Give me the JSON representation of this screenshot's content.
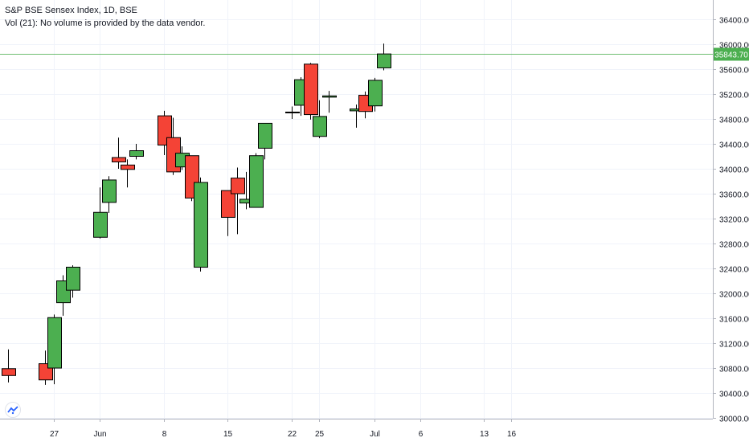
{
  "chart_data": {
    "type": "candlestick",
    "title": "S&P BSE Sensex Index, 1D, BSE",
    "subtitle": "Vol (21): No volume is provided by the data vendor.",
    "ylim": [
      30000,
      36600
    ],
    "y_ticks": [
      "30000.00",
      "30400.00",
      "30800.00",
      "31200.00",
      "31600.00",
      "32000.00",
      "32400.00",
      "32800.00",
      "33200.00",
      "33600.00",
      "34000.00",
      "34400.00",
      "34800.00",
      "35200.00",
      "35600.00",
      "36000.00",
      "36400.00"
    ],
    "x_ticks": [
      {
        "label": "27",
        "date": "2020-05-27"
      },
      {
        "label": "Jun",
        "date": "2020-06-01"
      },
      {
        "label": "8",
        "date": "2020-06-08"
      },
      {
        "label": "15",
        "date": "2020-06-15"
      },
      {
        "label": "22",
        "date": "2020-06-22"
      },
      {
        "label": "25",
        "date": "2020-06-25"
      },
      {
        "label": "Jul",
        "date": "2020-07-01"
      },
      {
        "label": "6",
        "date": "2020-07-06"
      },
      {
        "label": "13",
        "date": "2020-07-13"
      },
      {
        "label": "16",
        "date": "2020-07-16"
      }
    ],
    "last_price": "35843.70",
    "colors": {
      "up": "#4caf50",
      "down": "#f44336",
      "price_line": "#4caf50",
      "grid": "#f0f3fa",
      "text": "#131722"
    },
    "candles": [
      {
        "date": "2020-05-22",
        "open": 30790,
        "high": 31100,
        "low": 30570,
        "close": 30680
      },
      {
        "date": "2020-05-26",
        "open": 30870,
        "high": 31080,
        "low": 30530,
        "close": 30610
      },
      {
        "date": "2020-05-27",
        "open": 30800,
        "high": 31660,
        "low": 30540,
        "close": 31610
      },
      {
        "date": "2020-05-28",
        "open": 31850,
        "high": 32290,
        "low": 31640,
        "close": 32200
      },
      {
        "date": "2020-05-29",
        "open": 32050,
        "high": 32450,
        "low": 31930,
        "close": 32420
      },
      {
        "date": "2020-06-01",
        "open": 32900,
        "high": 33700,
        "low": 32880,
        "close": 33300
      },
      {
        "date": "2020-06-02",
        "open": 33460,
        "high": 33880,
        "low": 33290,
        "close": 33820
      },
      {
        "date": "2020-06-03",
        "open": 34180,
        "high": 34500,
        "low": 34000,
        "close": 34110
      },
      {
        "date": "2020-06-04",
        "open": 34060,
        "high": 34150,
        "low": 33700,
        "close": 33990
      },
      {
        "date": "2020-06-05",
        "open": 34200,
        "high": 34400,
        "low": 34150,
        "close": 34290
      },
      {
        "date": "2020-06-08",
        "open": 34850,
        "high": 34930,
        "low": 34220,
        "close": 34380
      },
      {
        "date": "2020-06-09",
        "open": 34500,
        "high": 34820,
        "low": 33900,
        "close": 33950
      },
      {
        "date": "2020-06-10",
        "open": 34030,
        "high": 34360,
        "low": 33980,
        "close": 34250
      },
      {
        "date": "2020-06-11",
        "open": 34210,
        "high": 34210,
        "low": 33480,
        "close": 33530
      },
      {
        "date": "2020-06-12",
        "open": 32420,
        "high": 33860,
        "low": 32350,
        "close": 33780
      },
      {
        "date": "2020-06-15",
        "open": 33650,
        "high": 33650,
        "low": 32920,
        "close": 33220
      },
      {
        "date": "2020-06-16",
        "open": 33850,
        "high": 34020,
        "low": 32950,
        "close": 33600
      },
      {
        "date": "2020-06-17",
        "open": 33450,
        "high": 33950,
        "low": 33350,
        "close": 33510
      },
      {
        "date": "2020-06-18",
        "open": 33380,
        "high": 34250,
        "low": 33380,
        "close": 34210
      },
      {
        "date": "2020-06-19",
        "open": 34330,
        "high": 34730,
        "low": 34150,
        "close": 34730
      },
      {
        "date": "2020-06-22",
        "open": 34900,
        "high": 35000,
        "low": 34800,
        "close": 34910
      },
      {
        "date": "2020-06-23",
        "open": 35020,
        "high": 35470,
        "low": 34850,
        "close": 35430
      },
      {
        "date": "2020-06-24",
        "open": 35680,
        "high": 35700,
        "low": 34790,
        "close": 34870
      },
      {
        "date": "2020-06-25",
        "open": 34520,
        "high": 35100,
        "low": 34490,
        "close": 34840
      },
      {
        "date": "2020-06-26",
        "open": 35150,
        "high": 35250,
        "low": 34900,
        "close": 35170
      },
      {
        "date": "2020-06-29",
        "open": 34930,
        "high": 35030,
        "low": 34660,
        "close": 34960
      },
      {
        "date": "2020-06-30",
        "open": 35180,
        "high": 35240,
        "low": 34810,
        "close": 34920
      },
      {
        "date": "2020-07-01",
        "open": 35010,
        "high": 35460,
        "low": 34920,
        "close": 35420
      },
      {
        "date": "2020-07-02",
        "open": 35620,
        "high": 36010,
        "low": 35580,
        "close": 35843.7
      }
    ]
  }
}
